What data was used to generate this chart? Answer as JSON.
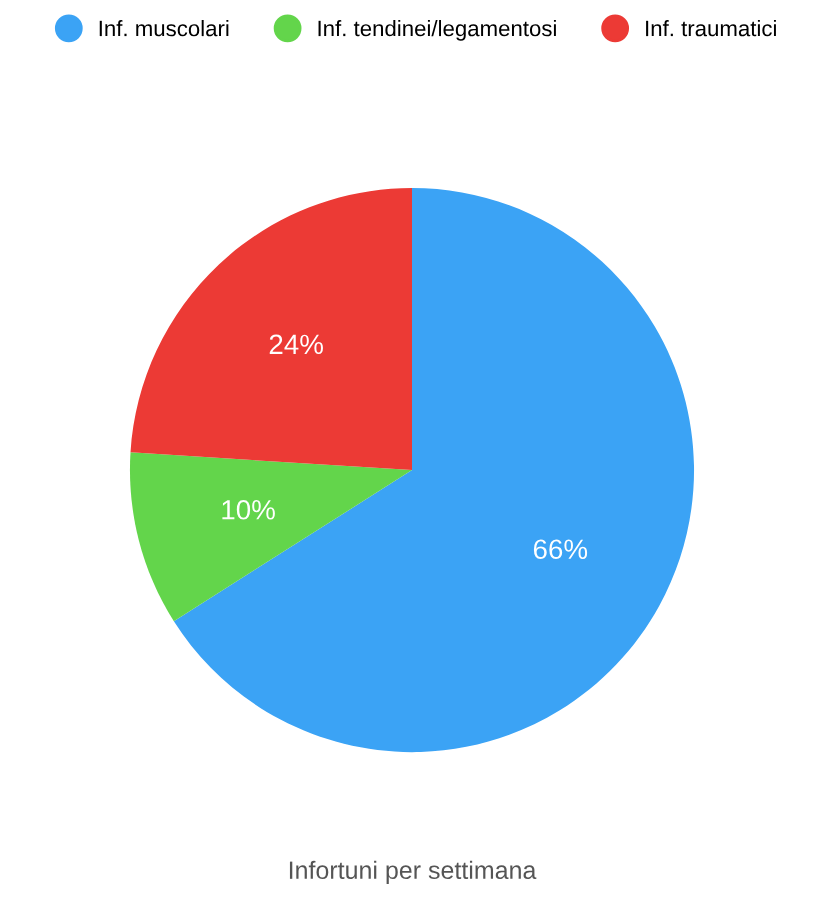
{
  "chart_data": {
    "type": "pie",
    "title": "Infortuni per settimana",
    "categories": [
      "Inf. muscolari",
      "Inf. tendinei/legamentosi",
      "Inf. traumatici"
    ],
    "values": [
      66,
      10,
      24
    ],
    "colors": [
      "#3ba3f5",
      "#63d54b",
      "#ec3a35"
    ],
    "value_labels": [
      "66%",
      "10%",
      "24%"
    ],
    "legend": "top"
  }
}
